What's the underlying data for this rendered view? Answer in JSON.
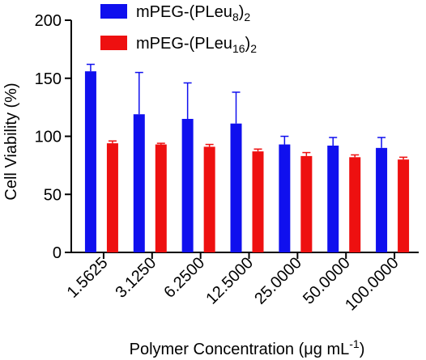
{
  "chart_data": {
    "type": "bar",
    "xlabel_text": "Polymer Concentration (",
    "xlabel_unit_mu": "μ",
    "xlabel_unit_rest": "g mL",
    "xlabel_exp": "-1",
    "xlabel_close": ")",
    "ylabel": "Cell Viability (%)",
    "ylim": [
      0,
      200
    ],
    "yticks": [
      0,
      50,
      100,
      150,
      200
    ],
    "categories": [
      "1.5625",
      "3.1250",
      "6.2500",
      "12.5000",
      "25.0000",
      "50.0000",
      "100.0000"
    ],
    "series": [
      {
        "legend_base": "mPEG-(PLeu",
        "legend_sub": "8",
        "legend_close": ")",
        "legend_sub2": "2",
        "color": "#1010ee",
        "values": [
          156,
          119,
          115,
          111,
          93,
          92,
          90
        ],
        "errors": [
          6,
          36,
          31,
          27,
          7,
          7,
          9
        ]
      },
      {
        "legend_base": "mPEG-(PLeu",
        "legend_sub": "16",
        "legend_close": ")",
        "legend_sub2": "2",
        "color": "#ee1010",
        "values": [
          94,
          93,
          91,
          87,
          83,
          82,
          80
        ],
        "errors": [
          2,
          1,
          2,
          2,
          3,
          2,
          2
        ]
      }
    ],
    "legend_position": "top-center",
    "grid": false
  }
}
